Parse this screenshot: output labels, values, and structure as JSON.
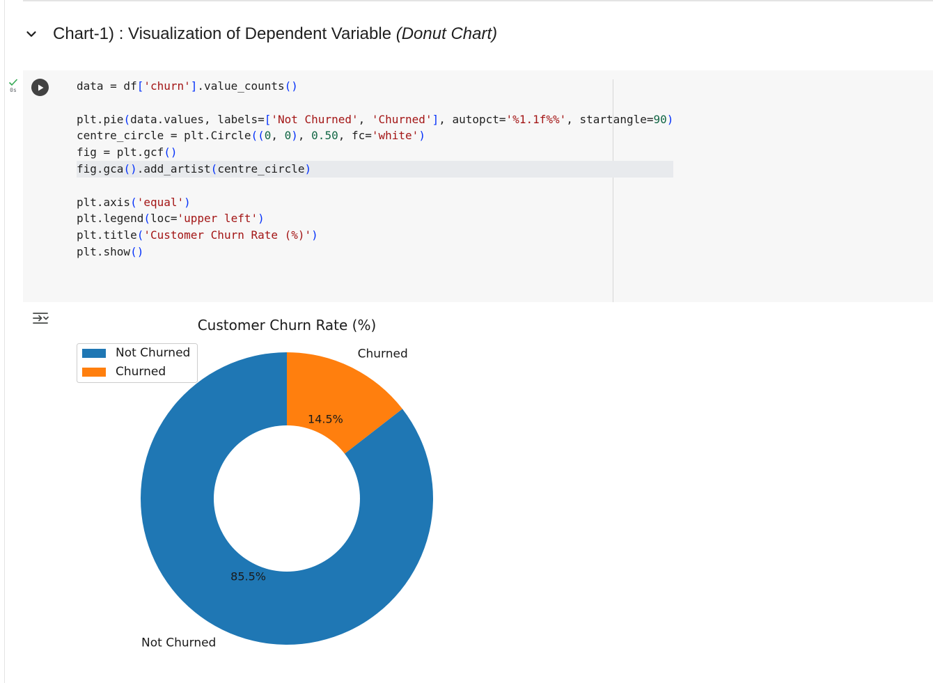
{
  "section": {
    "title_main": "Chart-1) : Visualization of Dependent Variable ",
    "title_italic": "(Donut Chart)",
    "icon": "chevron-down-icon"
  },
  "cell": {
    "exec_time": "0s",
    "status_icon": "check-icon",
    "run_icon": "play-icon",
    "output_icon": "output-collapse-icon"
  },
  "code_lines": [
    [
      {
        "t": "data = df"
      },
      {
        "t": "[",
        "c": "pun"
      },
      {
        "t": "'churn'",
        "c": "str"
      },
      {
        "t": "]",
        "c": "pun"
      },
      {
        "t": ".value_counts"
      },
      {
        "t": "()",
        "c": "pun"
      }
    ],
    [],
    [
      {
        "t": "plt.pie"
      },
      {
        "t": "(",
        "c": "pun"
      },
      {
        "t": "data.values, labels="
      },
      {
        "t": "[",
        "c": "pun"
      },
      {
        "t": "'Not Churned'",
        "c": "str"
      },
      {
        "t": ", "
      },
      {
        "t": "'Churned'",
        "c": "str"
      },
      {
        "t": "]",
        "c": "pun"
      },
      {
        "t": ", autopct="
      },
      {
        "t": "'%1.1f%%'",
        "c": "str"
      },
      {
        "t": ", startangle="
      },
      {
        "t": "90",
        "c": "num"
      },
      {
        "t": ")",
        "c": "pun"
      }
    ],
    [
      {
        "t": "centre_circle = plt.Circle"
      },
      {
        "t": "((",
        "c": "pun"
      },
      {
        "t": "0",
        "c": "num"
      },
      {
        "t": ", "
      },
      {
        "t": "0",
        "c": "num"
      },
      {
        "t": ")",
        "c": "pun"
      },
      {
        "t": ", "
      },
      {
        "t": "0.50",
        "c": "num"
      },
      {
        "t": ", fc="
      },
      {
        "t": "'white'",
        "c": "str"
      },
      {
        "t": ")",
        "c": "pun"
      }
    ],
    [
      {
        "t": "fig = plt.gcf"
      },
      {
        "t": "()",
        "c": "pun"
      }
    ],
    [
      {
        "t": "fig.gca"
      },
      {
        "t": "()",
        "c": "pun"
      },
      {
        "t": ".add_artist"
      },
      {
        "t": "(",
        "c": "pun"
      },
      {
        "t": "centre_circle"
      },
      {
        "t": ")",
        "c": "pun"
      }
    ],
    [],
    [
      {
        "t": "plt.axis"
      },
      {
        "t": "(",
        "c": "pun"
      },
      {
        "t": "'equal'",
        "c": "str"
      },
      {
        "t": ")",
        "c": "pun"
      }
    ],
    [
      {
        "t": "plt.legend"
      },
      {
        "t": "(",
        "c": "pun"
      },
      {
        "t": "loc="
      },
      {
        "t": "'upper left'",
        "c": "str"
      },
      {
        "t": ")",
        "c": "pun"
      }
    ],
    [
      {
        "t": "plt.title"
      },
      {
        "t": "(",
        "c": "pun"
      },
      {
        "t": "'Customer Churn Rate (%)'",
        "c": "str"
      },
      {
        "t": ")",
        "c": "pun"
      }
    ],
    [
      {
        "t": "plt.show"
      },
      {
        "t": "()",
        "c": "pun"
      }
    ]
  ],
  "chart_data": {
    "type": "pie",
    "donut": true,
    "hole_ratio": 0.5,
    "title": "Customer Churn Rate (%)",
    "start_angle": 90,
    "slices": [
      {
        "label": "Not Churned",
        "value": 85.5,
        "pct_label": "85.5%",
        "color": "#1f77b4"
      },
      {
        "label": "Churned",
        "value": 14.5,
        "pct_label": "14.5%",
        "color": "#ff7f0e"
      }
    ],
    "legend": {
      "position": "upper left",
      "entries": [
        "Not Churned",
        "Churned"
      ]
    }
  }
}
